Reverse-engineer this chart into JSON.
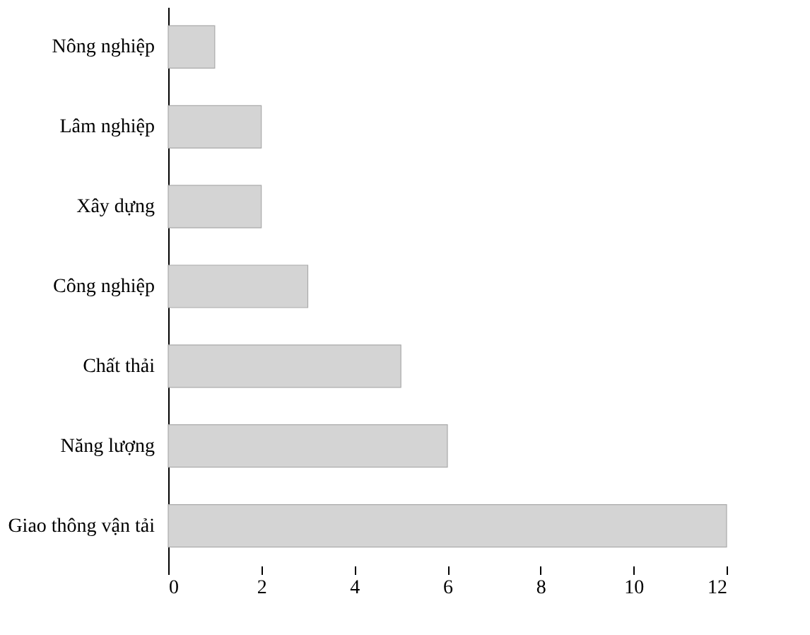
{
  "chart_data": {
    "type": "bar",
    "orientation": "horizontal",
    "categories": [
      "Nông nghiệp",
      "Lâm nghiệp",
      "Xây dựng",
      "Công nghiệp",
      "Chất thải",
      "Năng lượng",
      "Giao thông vận tải"
    ],
    "values": [
      1,
      2,
      2,
      3,
      5,
      6,
      12
    ],
    "color": "#d4d4d4",
    "xlim": [
      0,
      12
    ],
    "xticks": [
      0,
      2,
      4,
      6,
      8,
      10,
      12
    ],
    "grid": false
  }
}
